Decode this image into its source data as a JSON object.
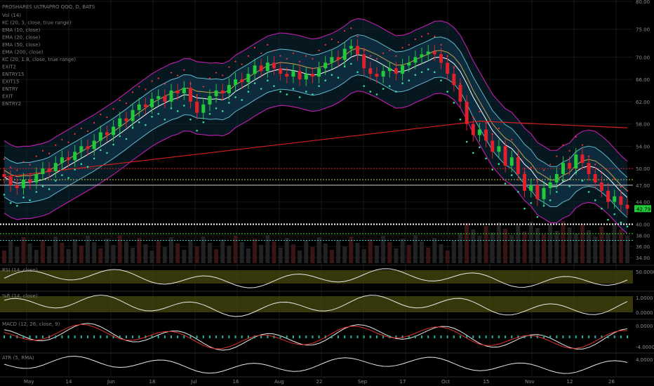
{
  "header": {
    "symbol_line": "PROSHARES ULTRAPRO QQQ, D, BATS"
  },
  "legend": [
    "Vol (14)",
    "KC (20, 3, close, true range)",
    "EMA (10, close)",
    "EMA (20, close)",
    "EMA (50, close)",
    "EMA (200, close)",
    "KC (20, 1.8, close, true range)",
    "EXIT2",
    "ENTRY15",
    "EXIT15",
    "ENTRY",
    "EXIT",
    "ENTRY2"
  ],
  "colors": {
    "background": "#000000",
    "up_candle": "#22c93a",
    "down_candle": "#e0202a",
    "kc_outer": "#b21ea6",
    "kc_inner": "#5fb8c8",
    "ema10": "#ffffff",
    "ema50": "#c8a050",
    "ema200": "#d42020",
    "band_fill": "#0d2a3a",
    "last_price_tag": "#22c93a",
    "osc_band": "#4a4a10"
  },
  "chart_data": {
    "type": "line",
    "title": "PROSHARES ULTRAPRO QQQ, D, BATS",
    "xlabel": "",
    "ylabel": "",
    "price_axis_ticks": [
      "80.00",
      "75.00",
      "70.00",
      "66.00",
      "62.00",
      "58.00",
      "54.00",
      "50.00",
      "47.00",
      "44.00",
      "42.79",
      "40.00",
      "38.00",
      "36.00",
      "34.00"
    ],
    "x_tick_labels": [
      "May",
      "14",
      "Jun",
      "18",
      "Jul",
      "16",
      "Aug",
      "22",
      "Sep",
      "17",
      "Oct",
      "15",
      "Nov",
      "12",
      "26"
    ],
    "last_price": "42.79",
    "ylim": [
      33,
      80
    ],
    "horizontal_levels": [
      {
        "value": 50.0,
        "style": "red-dotted"
      },
      {
        "value": 48.0,
        "style": "yellow-dotted"
      },
      {
        "value": 47.0,
        "style": "white"
      },
      {
        "value": 40.0,
        "style": "white-dotted"
      },
      {
        "value": 38.3,
        "style": "green-dotted"
      },
      {
        "value": 37.1,
        "style": "cyan-dotted"
      }
    ],
    "close_series": [
      48.5,
      47.0,
      46.5,
      48.0,
      47.5,
      49.0,
      50.0,
      49.5,
      51.0,
      52.0,
      51.5,
      53.0,
      54.0,
      53.5,
      55.0,
      56.5,
      56.0,
      57.5,
      59.0,
      58.5,
      60.5,
      61.5,
      61.0,
      62.5,
      63.0,
      62.0,
      64.0,
      63.5,
      64.5,
      62.0,
      60.0,
      61.5,
      63.0,
      64.0,
      63.5,
      65.0,
      66.0,
      65.5,
      67.0,
      68.5,
      67.5,
      69.0,
      68.0,
      67.0,
      66.5,
      67.5,
      66.0,
      67.0,
      66.5,
      68.0,
      69.0,
      70.0,
      69.5,
      71.5,
      72.0,
      70.5,
      68.0,
      67.0,
      66.5,
      67.5,
      68.0,
      67.0,
      68.5,
      69.0,
      70.0,
      70.5,
      71.0,
      70.5,
      69.0,
      67.0,
      65.0,
      62.0,
      58.0,
      56.0,
      57.0,
      55.0,
      53.0,
      54.0,
      50.5,
      52.0,
      49.0,
      46.0,
      47.0,
      44.5,
      46.5,
      47.5,
      49.0,
      51.0,
      50.0,
      52.5,
      51.0,
      49.0,
      47.5,
      46.0,
      44.0,
      45.0,
      43.5,
      42.79
    ],
    "ema200_start": 48.5,
    "ema200_end": 58.5,
    "volume_label": "Vol (14)",
    "panels": [
      {
        "name": "RSI",
        "label": "RSI (14, close)",
        "ticks": [
          "50.0000"
        ]
      },
      {
        "name": "Williams",
        "label": "%R (14, close)",
        "ticks": [
          "1.0000",
          "0.0000"
        ]
      },
      {
        "name": "MACD",
        "label": "MACD (12, 26, close, 9)",
        "ticks": [
          "0.0000",
          "-4.0000"
        ]
      },
      {
        "name": "ATR",
        "label": "ATR (5, RMA)",
        "ticks": [
          "4.0000"
        ]
      }
    ]
  }
}
